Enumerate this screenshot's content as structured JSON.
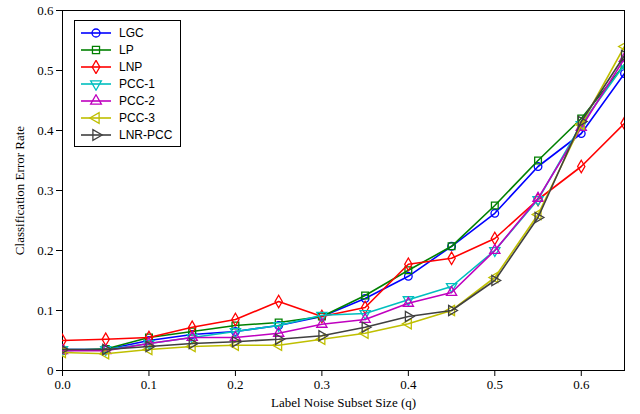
{
  "chart_data": {
    "type": "line",
    "x_label": "Label Noise Subset Size (q)",
    "y_label": "Classification Error Rate",
    "x": [
      0,
      0.05,
      0.1,
      0.15,
      0.2,
      0.25,
      0.3,
      0.35,
      0.4,
      0.45,
      0.5,
      0.55,
      0.6,
      0.65
    ],
    "xlim": [
      0,
      0.65
    ],
    "xticks": [
      {
        "value": 0,
        "label": "0.0"
      },
      {
        "value": 0.1,
        "label": "0.1"
      },
      {
        "value": 0.2,
        "label": "0.2"
      },
      {
        "value": 0.3,
        "label": "0.3"
      },
      {
        "value": 0.4,
        "label": "0.4"
      },
      {
        "value": 0.5,
        "label": "0.5"
      },
      {
        "value": 0.6,
        "label": "0.6"
      }
    ],
    "ylim": [
      0,
      0.6
    ],
    "yticks": [
      0,
      0.1,
      0.2,
      0.3,
      0.4,
      0.5,
      0.6
    ],
    "grid": false,
    "legend": "top-left",
    "series": [
      {
        "name": "LGC",
        "color": "#0000ff",
        "marker": "circle",
        "values": [
          0.035,
          0.035,
          0.05,
          0.06,
          0.065,
          0.075,
          0.09,
          0.12,
          0.157,
          0.207,
          0.262,
          0.34,
          0.395,
          0.495
        ]
      },
      {
        "name": "LP",
        "color": "#008000",
        "marker": "square",
        "values": [
          0.033,
          0.036,
          0.055,
          0.065,
          0.075,
          0.08,
          0.09,
          0.125,
          0.167,
          0.207,
          0.275,
          0.35,
          0.42,
          0.51
        ]
      },
      {
        "name": "LNP",
        "color": "#ff0000",
        "marker": "diamond",
        "values": [
          0.05,
          0.052,
          0.055,
          0.072,
          0.085,
          0.115,
          0.09,
          0.105,
          0.177,
          0.187,
          0.22,
          0.285,
          0.34,
          0.412
        ]
      },
      {
        "name": "PCC-1",
        "color": "#00bfbf",
        "marker": "triangle-down",
        "values": [
          0.035,
          0.035,
          0.045,
          0.055,
          0.065,
          0.075,
          0.092,
          0.095,
          0.118,
          0.14,
          0.2,
          0.285,
          0.41,
          0.51
        ]
      },
      {
        "name": "PCC-2",
        "color": "#bf00bf",
        "marker": "triangle-up",
        "values": [
          0.033,
          0.033,
          0.045,
          0.055,
          0.055,
          0.062,
          0.077,
          0.085,
          0.112,
          0.13,
          0.2,
          0.287,
          0.405,
          0.52
        ]
      },
      {
        "name": "PCC-3",
        "color": "#bfbf00",
        "marker": "triangle-left",
        "values": [
          0.03,
          0.028,
          0.035,
          0.04,
          0.042,
          0.042,
          0.052,
          0.062,
          0.078,
          0.1,
          0.155,
          0.26,
          0.41,
          0.54
        ]
      },
      {
        "name": "LNR-PCC",
        "color": "#404040",
        "marker": "triangle-right",
        "values": [
          0.035,
          0.035,
          0.04,
          0.045,
          0.048,
          0.052,
          0.058,
          0.072,
          0.09,
          0.1,
          0.15,
          0.255,
          0.415,
          0.525
        ]
      }
    ]
  }
}
